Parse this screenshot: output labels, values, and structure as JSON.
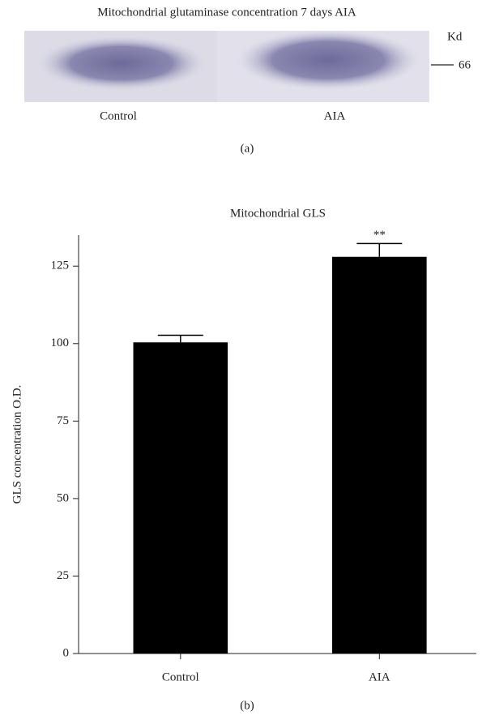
{
  "blot": {
    "title": "Mitochondrial glutaminase concentration 7 days AIA",
    "unit": "Kd",
    "marker": "66",
    "lanes": [
      "Control",
      "AIA"
    ],
    "panel": "(a)"
  },
  "chart_data": {
    "type": "bar",
    "title": "Mitochondrial GLS",
    "ylabel": "GLS concentration O.D.",
    "panel": "(b)",
    "categories": [
      "Control",
      "AIA"
    ],
    "values": [
      100.4,
      128
    ],
    "errors": [
      2.3,
      4.3
    ],
    "color": "#000000",
    "annotations": [
      {
        "text": "**",
        "x": "AIA"
      }
    ],
    "ylim": [
      0,
      135
    ],
    "yticks": [
      0,
      25,
      50,
      75,
      100,
      125
    ]
  }
}
